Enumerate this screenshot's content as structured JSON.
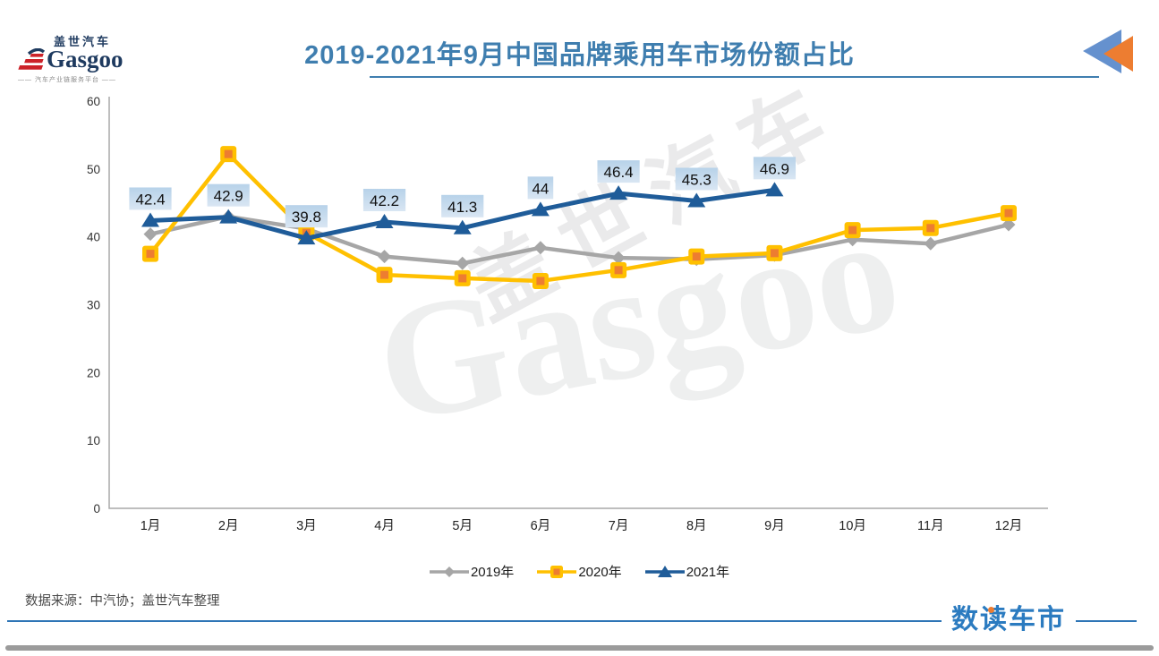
{
  "header": {
    "logo": {
      "name_cn": "盖世汽车",
      "name_en": "Gasgoo",
      "tagline": "—— 汽车产业链服务平台 ——",
      "navy": "#1e3a5f",
      "red": "#cc2229"
    },
    "title": "2019-2021年9月中国品牌乘用车市场份额占比",
    "accent_color": "#3F7EAF",
    "corner_icon": {
      "blue": "#6591CE",
      "orange": "#ED7D31"
    }
  },
  "chart_data": {
    "type": "line",
    "title": "2019-2021年9月中国品牌乘用车市场份额占比",
    "categories": [
      "1月",
      "2月",
      "3月",
      "4月",
      "5月",
      "6月",
      "7月",
      "8月",
      "9月",
      "10月",
      "11月",
      "12月"
    ],
    "xlabel": "",
    "ylabel": "",
    "ylim": [
      0,
      60
    ],
    "yticks": [
      0,
      10,
      20,
      30,
      40,
      50,
      60
    ],
    "grid": false,
    "legend_position": "bottom",
    "series": [
      {
        "name": "2019年",
        "color": "#A6A6A6",
        "marker": "diamond",
        "values": [
          40.4,
          43.0,
          41.2,
          37.1,
          36.1,
          38.4,
          36.9,
          36.7,
          37.3,
          39.6,
          39.0,
          41.8
        ]
      },
      {
        "name": "2020年",
        "color": "#FFC000",
        "marker": "square",
        "marker_fill": "#ED7D31",
        "values": [
          37.5,
          52.2,
          40.6,
          34.4,
          33.9,
          33.5,
          35.1,
          37.1,
          37.6,
          41.0,
          41.3,
          43.5
        ]
      },
      {
        "name": "2021年",
        "color": "#1F5C99",
        "marker": "triangle",
        "values": [
          42.4,
          42.9,
          39.8,
          42.2,
          41.3,
          44,
          46.4,
          45.3,
          46.9
        ],
        "data_labels": [
          "42.4",
          "42.9",
          "39.8",
          "42.2",
          "41.3",
          "44",
          "46.4",
          "45.3",
          "46.9"
        ],
        "label_bg_top": "#B7D2E9",
        "label_bg_bottom": "#D9E6F3",
        "label_text_color": "#111111"
      }
    ]
  },
  "watermark": {
    "text_cn": "盖世汽车",
    "text_en": "Gasgoo"
  },
  "footer": {
    "source": "数据来源：中汽协；盖世汽车整理",
    "brand": "数读车市",
    "brand_color": "#2B7BC0",
    "line_color": "#2E75B6"
  }
}
